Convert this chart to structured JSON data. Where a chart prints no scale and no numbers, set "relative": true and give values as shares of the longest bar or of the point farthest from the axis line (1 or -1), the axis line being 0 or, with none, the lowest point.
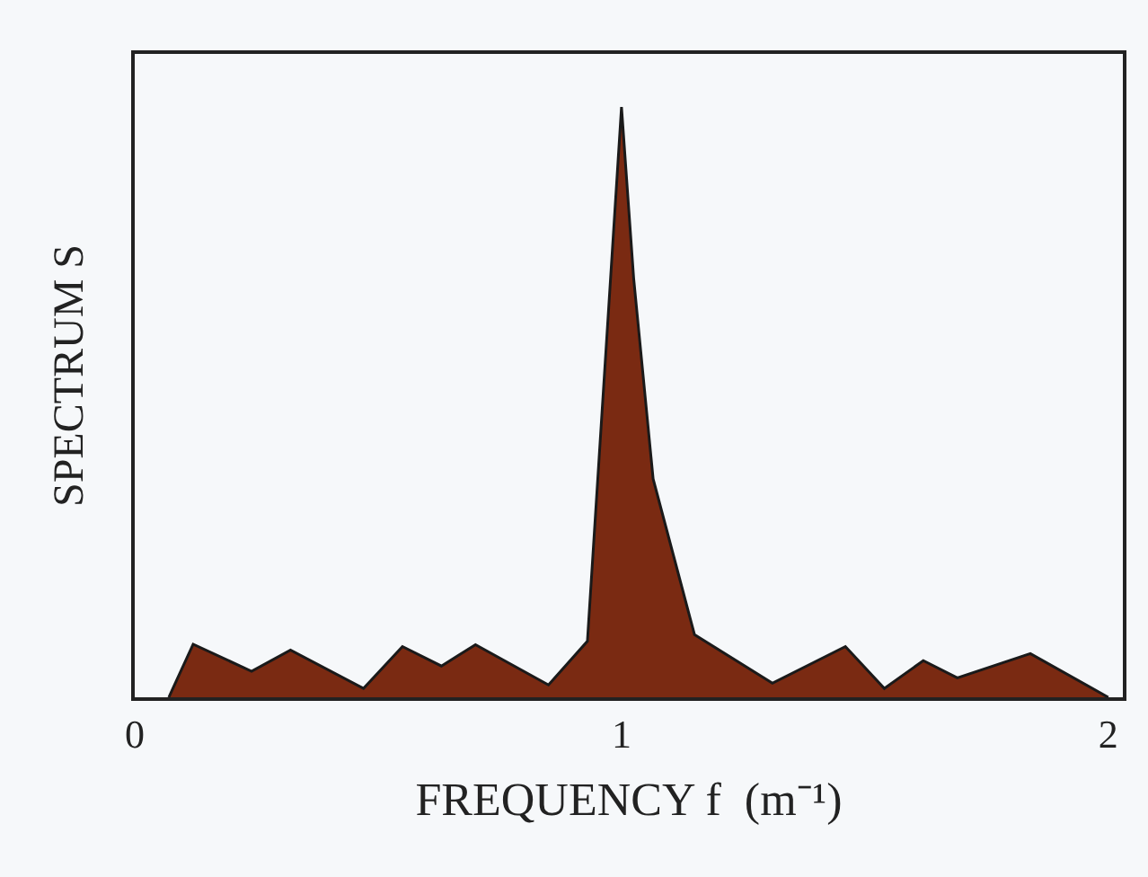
{
  "chart_data": {
    "type": "area",
    "relative": true,
    "xlabel": "FREQUENCY f  (m⁻¹)",
    "ylabel": "SPECTRUM S",
    "x": [
      0.07,
      0.12,
      0.24,
      0.32,
      0.47,
      0.55,
      0.63,
      0.7,
      0.85,
      0.93,
      1.0,
      1.025,
      1.065,
      1.15,
      1.31,
      1.46,
      1.54,
      1.62,
      1.69,
      1.84,
      2.0
    ],
    "series": [
      {
        "color": "#7a2a12",
        "values": [
          0,
          0.09,
          0.044,
          0.08,
          0.015,
          0.086,
          0.053,
          0.089,
          0.021,
          0.095,
          1,
          0.71,
          0.37,
          0.106,
          0.024,
          0.086,
          0.015,
          0.062,
          0.033,
          0.074,
          0
        ]
      }
    ],
    "xlim": [
      0,
      2.03
    ],
    "xticks": [
      0,
      1,
      2
    ],
    "grid": false,
    "legend": false
  }
}
